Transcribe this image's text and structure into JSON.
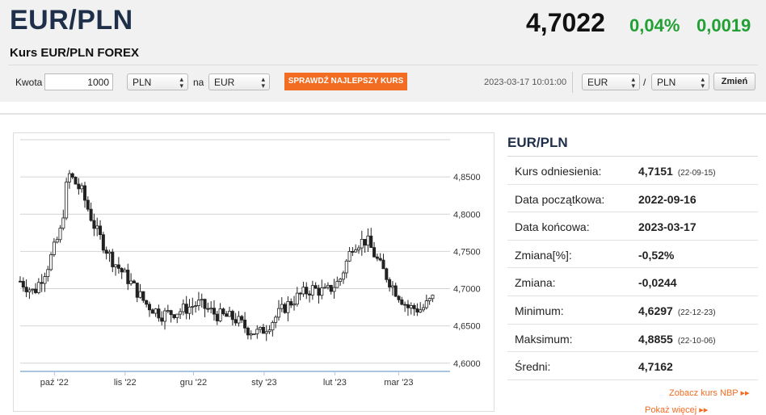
{
  "header": {
    "pair": "EUR/PLN",
    "subtitle": "Kurs EUR/PLN FOREX",
    "rate": "4,7022",
    "change_pct": "0,04%",
    "change_abs": "0,0019"
  },
  "converter": {
    "amount_label": "Kwota",
    "amount_value": "1000",
    "from_currency": "PLN",
    "to_label": "na",
    "to_currency": "EUR",
    "best_rate_button": "SPRAWDŹ NAJLEPSZY KURS",
    "timestamp": "2023-03-17 10:01:00",
    "pair_from": "EUR",
    "pair_slash": "/",
    "pair_to": "PLN",
    "change_button": "Zmień"
  },
  "stats": {
    "title": "EUR/PLN",
    "rows": [
      {
        "label": "Kurs odniesienia:",
        "value": "4,7151",
        "date": "(22-09-15)"
      },
      {
        "label": "Data początkowa:",
        "value": "2022-09-16",
        "date": ""
      },
      {
        "label": "Data końcowa:",
        "value": "2023-03-17",
        "date": ""
      },
      {
        "label": "Zmiana[%]:",
        "value": "-0,52%",
        "date": ""
      },
      {
        "label": "Zmiana:",
        "value": "-0,0244",
        "date": ""
      },
      {
        "label": "Minimum:",
        "value": "4,6297",
        "date": "(22-12-23)"
      },
      {
        "label": "Maksimum:",
        "value": "4,8855",
        "date": "(22-10-06)"
      },
      {
        "label": "Średni:",
        "value": "4,7162",
        "date": ""
      }
    ],
    "nbp_link": "Zobacz kurs NBP ▸▸",
    "more_link": "Pokaż więcej ▸▸"
  },
  "chart_data": {
    "type": "candlestick",
    "ylim": [
      4.59,
      4.9
    ],
    "y_ticks": [
      "4,6000",
      "4,6500",
      "4,7000",
      "4,7500",
      "4,8000",
      "4,8500"
    ],
    "x_ticks": [
      "paź '22",
      "lis '22",
      "gru '22",
      "sty '23",
      "lut '23",
      "mar '23"
    ],
    "x_tick_days": [
      15,
      46,
      76,
      107,
      138,
      166
    ],
    "x_range_days": [
      0,
      185
    ],
    "series": [
      {
        "x": [
          0,
          6,
          12,
          18,
          21,
          27,
          33,
          40,
          48,
          55,
          62,
          70,
          78,
          86,
          94,
          100,
          105,
          110,
          116,
          122,
          128,
          134,
          140,
          146,
          152,
          158,
          164,
          170,
          176,
          182
        ],
        "y": [
          4.71,
          4.695,
          4.73,
          4.78,
          4.855,
          4.83,
          4.78,
          4.74,
          4.71,
          4.68,
          4.665,
          4.67,
          4.68,
          4.665,
          4.66,
          4.645,
          4.64,
          4.655,
          4.675,
          4.69,
          4.7,
          4.695,
          4.71,
          4.76,
          4.765,
          4.73,
          4.7,
          4.675,
          4.672,
          4.69
        ]
      }
    ]
  }
}
